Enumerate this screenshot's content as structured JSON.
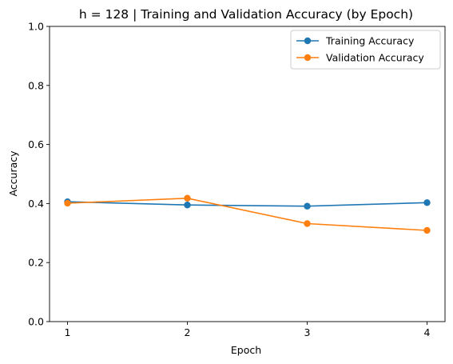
{
  "chart_data": {
    "type": "line",
    "title": "h = 128 | Training and Validation Accuracy (by Epoch)",
    "xlabel": "Epoch",
    "ylabel": "Accuracy",
    "x": [
      1,
      2,
      3,
      4
    ],
    "xticks": [
      "1",
      "2",
      "3",
      "4"
    ],
    "yticks": [
      "0.0",
      "0.2",
      "0.4",
      "0.6",
      "0.8",
      "1.0"
    ],
    "ylim": [
      0,
      1
    ],
    "grid": false,
    "legend_position": "top-right",
    "series": [
      {
        "name": "Training Accuracy",
        "color": "#1f77b4",
        "marker": "circle",
        "values": [
          0.406,
          0.395,
          0.391,
          0.403
        ]
      },
      {
        "name": "Validation Accuracy",
        "color": "#ff7f0e",
        "marker": "circle",
        "values": [
          0.401,
          0.418,
          0.332,
          0.309
        ]
      }
    ]
  }
}
